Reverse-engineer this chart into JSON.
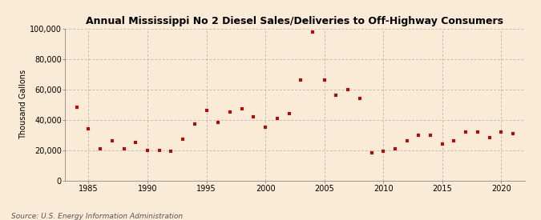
{
  "title": "Annual Mississippi No 2 Diesel Sales/Deliveries to Off-Highway Consumers",
  "ylabel": "Thousand Gallons",
  "source": "Source: U.S. Energy Information Administration",
  "background_color": "#faebd7",
  "plot_bg_color": "#faebd7",
  "marker_color": "#cc0000",
  "marker": "s",
  "marker_size": 3.5,
  "xlim": [
    1983,
    2022
  ],
  "ylim": [
    0,
    100000
  ],
  "yticks": [
    0,
    20000,
    40000,
    60000,
    80000,
    100000
  ],
  "xticks": [
    1985,
    1990,
    1995,
    2000,
    2005,
    2010,
    2015,
    2020
  ],
  "years": [
    1984,
    1985,
    1986,
    1987,
    1988,
    1989,
    1990,
    1991,
    1992,
    1993,
    1994,
    1995,
    1996,
    1997,
    1998,
    1999,
    2000,
    2001,
    2002,
    2003,
    2004,
    2005,
    2006,
    2007,
    2008,
    2009,
    2010,
    2011,
    2012,
    2013,
    2014,
    2015,
    2016,
    2017,
    2018,
    2019,
    2020,
    2021
  ],
  "values": [
    48000,
    34000,
    21000,
    26000,
    21000,
    25000,
    20000,
    20000,
    19000,
    27000,
    37000,
    46000,
    38000,
    45000,
    47000,
    42000,
    35000,
    41000,
    44000,
    66000,
    98000,
    66000,
    56000,
    60000,
    54000,
    18000,
    19000,
    21000,
    26000,
    30000,
    30000,
    24000,
    26000,
    32000,
    32000,
    28000,
    32000,
    31000
  ],
  "grid_color": "#aaaaaa",
  "grid_lw": 0.5,
  "title_fontsize": 9,
  "ylabel_fontsize": 7,
  "tick_fontsize": 7,
  "source_fontsize": 6.5
}
